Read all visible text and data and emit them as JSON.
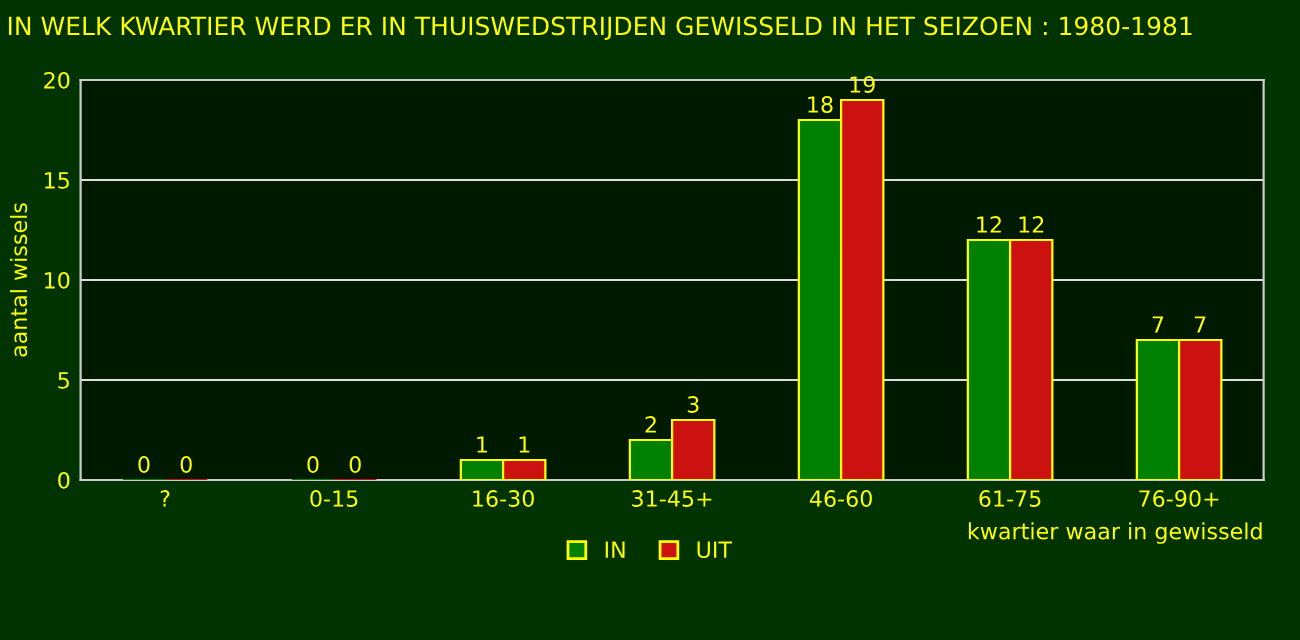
{
  "chart_data": {
    "type": "bar",
    "title": "IN WELK KWARTIER WERD ER IN THUISWEDSTRIJDEN GEWISSELD IN HET SEIZOEN : 1980-1981",
    "xlabel": "kwartier waar in gewisseld",
    "ylabel": "aantal wissels",
    "categories": [
      "?",
      "0-15",
      "16-30",
      "31-45+",
      "46-60",
      "61-75",
      "76-90+"
    ],
    "series": [
      {
        "name": "IN",
        "color": "#008000",
        "values": [
          0,
          0,
          1,
          2,
          18,
          12,
          7
        ]
      },
      {
        "name": "UIT",
        "color": "#cc1111",
        "values": [
          0,
          0,
          1,
          3,
          19,
          12,
          7
        ]
      }
    ],
    "ylim": [
      0,
      20
    ],
    "yticks": [
      0,
      5,
      10,
      15,
      20
    ],
    "grid": "y",
    "legend": "bottom",
    "data_labels": true
  }
}
